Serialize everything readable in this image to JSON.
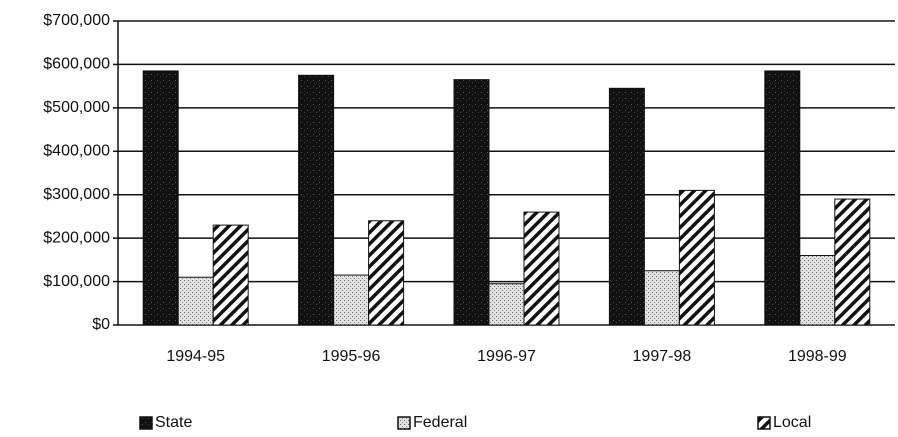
{
  "chart_data": {
    "type": "bar",
    "categories": [
      "1994-95",
      "1995-96",
      "1996-97",
      "1997-98",
      "1998-99"
    ],
    "series": [
      {
        "name": "State",
        "color": "#111111",
        "values": [
          585000,
          575000,
          565000,
          545000,
          585000
        ]
      },
      {
        "name": "Federal",
        "color": "#e2e2e2",
        "values": [
          110000,
          115000,
          95000,
          125000,
          160000
        ]
      },
      {
        "name": "Local",
        "color": "#ffffff",
        "values": [
          230000,
          240000,
          260000,
          310000,
          290000
        ]
      }
    ],
    "ylim": [
      0,
      700000
    ],
    "yticks": [
      {
        "value": 0,
        "label": "$0"
      },
      {
        "value": 100000,
        "label": "$100,000"
      },
      {
        "value": 200000,
        "label": "$200,000"
      },
      {
        "value": 300000,
        "label": "$300,000"
      },
      {
        "value": 400000,
        "label": "$400,000"
      },
      {
        "value": 500000,
        "label": "$500,000"
      },
      {
        "value": 600000,
        "label": "$600,000"
      },
      {
        "value": 700000,
        "label": "$700,000"
      }
    ],
    "grid": true,
    "legend": "bottom"
  }
}
